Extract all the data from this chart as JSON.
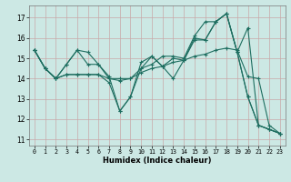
{
  "xlabel": "Humidex (Indice chaleur)",
  "background_color": "#cce8e4",
  "grid_color_x": "#c8b8b8",
  "grid_color_y": "#c8b8b8",
  "line_color": "#1e6e60",
  "xlim": [
    -0.5,
    23.5
  ],
  "ylim": [
    10.7,
    17.6
  ],
  "yticks": [
    11,
    12,
    13,
    14,
    15,
    16,
    17
  ],
  "xticks": [
    0,
    1,
    2,
    3,
    4,
    5,
    6,
    7,
    8,
    9,
    10,
    11,
    12,
    13,
    14,
    15,
    16,
    17,
    18,
    19,
    20,
    21,
    22,
    23
  ],
  "lines": [
    [
      15.4,
      14.5,
      14.0,
      14.7,
      15.4,
      15.3,
      14.7,
      14.1,
      12.4,
      13.1,
      14.8,
      15.1,
      14.6,
      15.0,
      14.9,
      16.0,
      15.9,
      16.8,
      17.2,
      15.3,
      13.1,
      11.7,
      11.5,
      11.3
    ],
    [
      15.4,
      14.5,
      14.0,
      14.2,
      14.2,
      14.2,
      14.2,
      14.0,
      13.9,
      14.0,
      14.3,
      14.5,
      14.6,
      14.8,
      14.9,
      15.1,
      15.2,
      15.4,
      15.5,
      15.4,
      14.1,
      14.0,
      11.7,
      11.3
    ],
    [
      15.4,
      14.5,
      14.0,
      14.7,
      15.4,
      14.7,
      14.7,
      14.0,
      14.0,
      14.0,
      14.5,
      14.7,
      15.1,
      15.1,
      15.0,
      16.1,
      16.8,
      16.8,
      17.2,
      15.3,
      16.5,
      11.7,
      11.5,
      11.3
    ],
    [
      15.4,
      14.5,
      14.0,
      14.2,
      14.2,
      14.2,
      14.2,
      13.8,
      12.4,
      13.1,
      14.5,
      15.1,
      14.6,
      14.0,
      14.9,
      15.9,
      15.9,
      16.8,
      17.2,
      15.3,
      13.1,
      11.7,
      11.5,
      11.3
    ]
  ]
}
